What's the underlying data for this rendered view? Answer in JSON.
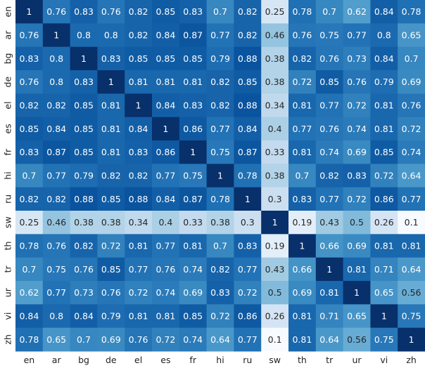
{
  "chart_data": {
    "type": "heatmap",
    "languages": [
      "en",
      "ar",
      "bg",
      "de",
      "el",
      "es",
      "fr",
      "hi",
      "ru",
      "sw",
      "th",
      "tr",
      "ur",
      "vi",
      "zh"
    ],
    "matrix": [
      [
        "1",
        "0.76",
        "0.83",
        "0.76",
        "0.82",
        "0.85",
        "0.83",
        "0.7",
        "0.82",
        "0.25",
        "0.78",
        "0.7",
        "0.62",
        "0.84",
        "0.78"
      ],
      [
        "0.76",
        "1",
        "0.8",
        "0.8",
        "0.82",
        "0.84",
        "0.87",
        "0.77",
        "0.82",
        "0.46",
        "0.76",
        "0.75",
        "0.77",
        "0.8",
        "0.65"
      ],
      [
        "0.83",
        "0.8",
        "1",
        "0.83",
        "0.85",
        "0.85",
        "0.85",
        "0.79",
        "0.88",
        "0.38",
        "0.82",
        "0.76",
        "0.73",
        "0.84",
        "0.7"
      ],
      [
        "0.76",
        "0.8",
        "0.83",
        "1",
        "0.81",
        "0.81",
        "0.81",
        "0.82",
        "0.85",
        "0.38",
        "0.72",
        "0.85",
        "0.76",
        "0.79",
        "0.69"
      ],
      [
        "0.82",
        "0.82",
        "0.85",
        "0.81",
        "1",
        "0.84",
        "0.83",
        "0.82",
        "0.88",
        "0.34",
        "0.81",
        "0.77",
        "0.72",
        "0.81",
        "0.76"
      ],
      [
        "0.85",
        "0.84",
        "0.85",
        "0.81",
        "0.84",
        "1",
        "0.86",
        "0.77",
        "0.84",
        "0.4",
        "0.77",
        "0.76",
        "0.74",
        "0.81",
        "0.72"
      ],
      [
        "0.83",
        "0.87",
        "0.85",
        "0.81",
        "0.83",
        "0.86",
        "1",
        "0.75",
        "0.87",
        "0.33",
        "0.81",
        "0.74",
        "0.69",
        "0.85",
        "0.74"
      ],
      [
        "0.7",
        "0.77",
        "0.79",
        "0.82",
        "0.82",
        "0.77",
        "0.75",
        "1",
        "0.78",
        "0.38",
        "0.7",
        "0.82",
        "0.83",
        "0.72",
        "0.64"
      ],
      [
        "0.82",
        "0.82",
        "0.88",
        "0.85",
        "0.88",
        "0.84",
        "0.87",
        "0.78",
        "1",
        "0.3",
        "0.83",
        "0.77",
        "0.72",
        "0.86",
        "0.77"
      ],
      [
        "0.25",
        "0.46",
        "0.38",
        "0.38",
        "0.34",
        "0.4",
        "0.33",
        "0.38",
        "0.3",
        "1",
        "0.19",
        "0.43",
        "0.5",
        "0.26",
        "0.1"
      ],
      [
        "0.78",
        "0.76",
        "0.82",
        "0.72",
        "0.81",
        "0.77",
        "0.81",
        "0.7",
        "0.83",
        "0.19",
        "1",
        "0.66",
        "0.69",
        "0.81",
        "0.81"
      ],
      [
        "0.7",
        "0.75",
        "0.76",
        "0.85",
        "0.77",
        "0.76",
        "0.74",
        "0.82",
        "0.77",
        "0.43",
        "0.66",
        "1",
        "0.81",
        "0.71",
        "0.64"
      ],
      [
        "0.62",
        "0.77",
        "0.73",
        "0.76",
        "0.72",
        "0.74",
        "0.69",
        "0.83",
        "0.72",
        "0.5",
        "0.69",
        "0.81",
        "1",
        "0.65",
        "0.56"
      ],
      [
        "0.84",
        "0.8",
        "0.84",
        "0.79",
        "0.81",
        "0.81",
        "0.85",
        "0.72",
        "0.86",
        "0.26",
        "0.81",
        "0.71",
        "0.65",
        "1",
        "0.75"
      ],
      [
        "0.78",
        "0.65",
        "0.7",
        "0.69",
        "0.76",
        "0.72",
        "0.74",
        "0.64",
        "0.77",
        "0.1",
        "0.81",
        "0.64",
        "0.56",
        "0.75",
        "1"
      ]
    ],
    "colormap": "Blues",
    "value_range": [
      0.1,
      1
    ],
    "title": "",
    "xlabel": "",
    "ylabel": ""
  }
}
